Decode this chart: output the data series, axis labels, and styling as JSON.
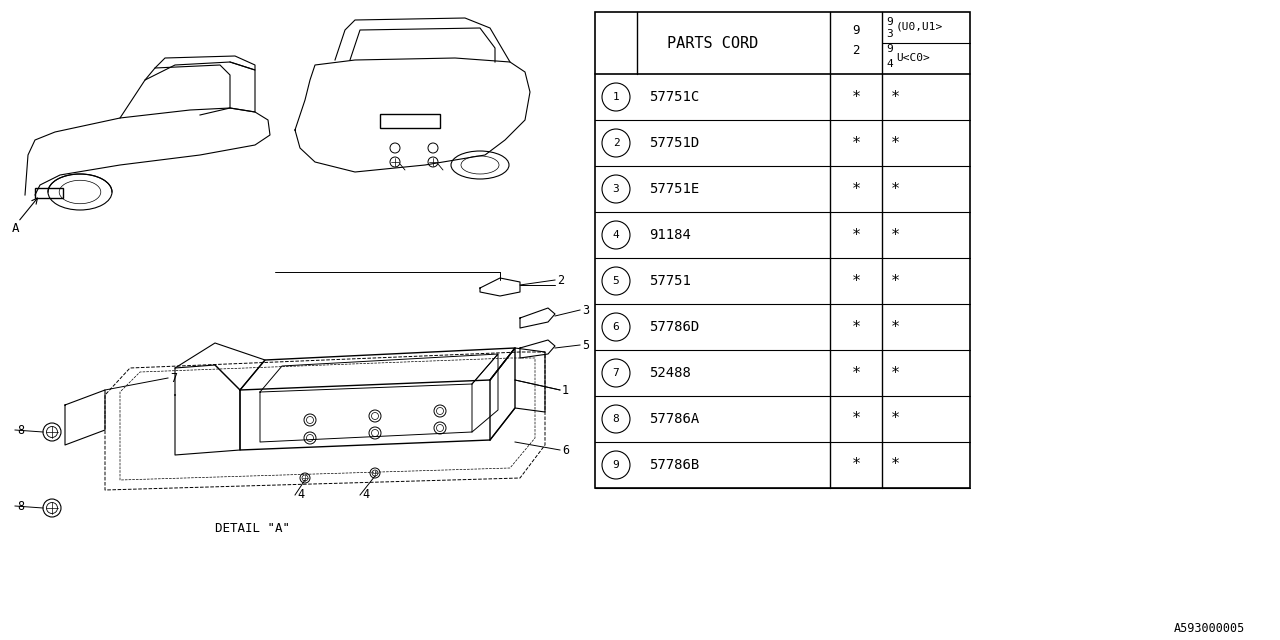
{
  "bg_color": "#ffffff",
  "line_color": "#000000",
  "table": {
    "title": "PARTS CORD",
    "rows": [
      {
        "num": 1,
        "part": "57751C",
        "v1": "*",
        "v2": "*"
      },
      {
        "num": 2,
        "part": "57751D",
        "v1": "*",
        "v2": "*"
      },
      {
        "num": 3,
        "part": "57751E",
        "v1": "*",
        "v2": "*"
      },
      {
        "num": 4,
        "part": "91184",
        "v1": "*",
        "v2": "*"
      },
      {
        "num": 5,
        "part": "57751",
        "v1": "*",
        "v2": "*"
      },
      {
        "num": 6,
        "part": "57786D",
        "v1": "*",
        "v2": "*"
      },
      {
        "num": 7,
        "part": "52488",
        "v1": "*",
        "v2": "*"
      },
      {
        "num": 8,
        "part": "57786A",
        "v1": "*",
        "v2": "*"
      },
      {
        "num": 9,
        "part": "57786B",
        "v1": "*",
        "v2": "*"
      }
    ]
  },
  "footer_text": "A593000005",
  "detail_label": "DETAIL \"A\""
}
